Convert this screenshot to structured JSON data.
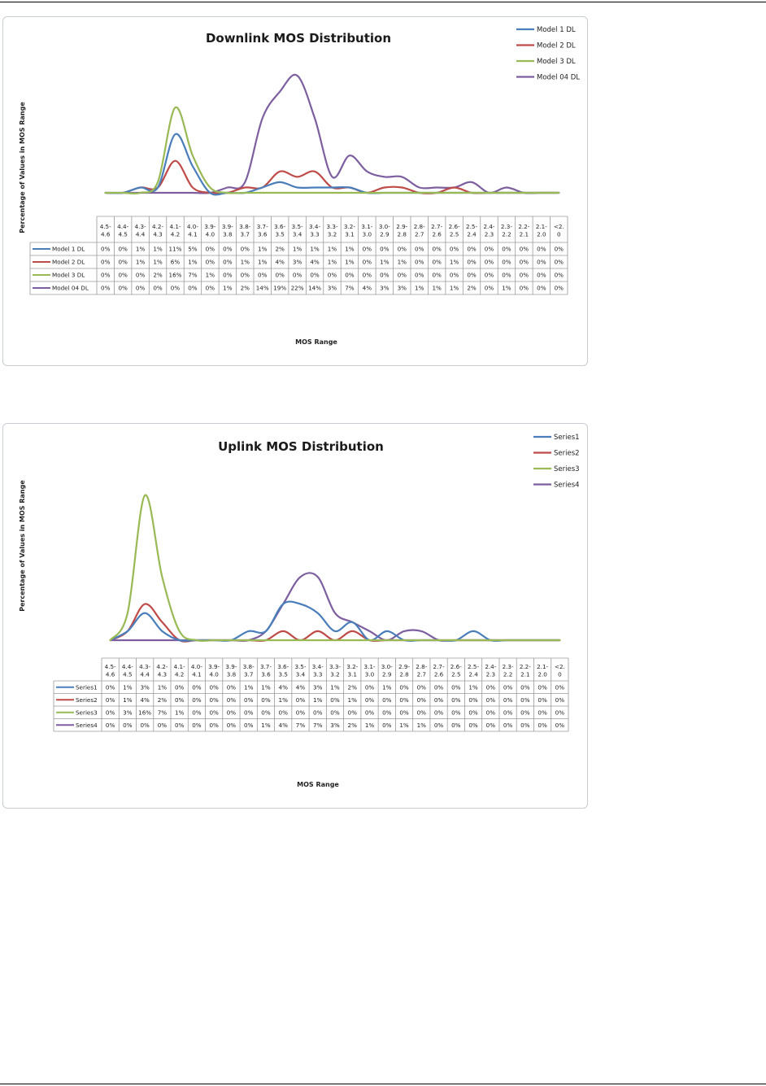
{
  "chart_data": [
    {
      "type": "line",
      "title": "Downlink MOS Distribution",
      "xlabel": "MOS Range",
      "ylabel": "Percentage of Values in MOS Range",
      "legend_position": "top-right",
      "grid": false,
      "smooth": true,
      "categories": [
        "4.5-\n4.6",
        "4.4-\n4.5",
        "4.3-\n4.4",
        "4.2-\n4.3",
        "4.1-\n4.2",
        "4.0-\n4.1",
        "3.9-\n4.0",
        "3.9-\n3.8",
        "3.8-\n3.7",
        "3.7-\n3.6",
        "3.6-\n3.5",
        "3.5-\n3.4",
        "3.4-\n3.3",
        "3.3-\n3.2",
        "3.2-\n3.1",
        "3.1-\n3.0",
        "3.0-\n2.9",
        "2.9-\n2.8",
        "2.8-\n2.7",
        "2.7-\n2.6",
        "2.6-\n2.5",
        "2.5-\n2.4",
        "2.4-\n2.3",
        "2.3-\n2.2",
        "2.2-\n2.1",
        "2.1-\n2.0",
        "<2.\n0"
      ],
      "series": [
        {
          "name": "Model 1 DL",
          "color": "#4a7ebb",
          "values": [
            0,
            0,
            1,
            1,
            11,
            5,
            0,
            0,
            0,
            1,
            2,
            1,
            1,
            1,
            1,
            0,
            0,
            0,
            0,
            0,
            0,
            0,
            0,
            0,
            0,
            0,
            0
          ],
          "labels": [
            "0%",
            "0%",
            "1%",
            "1%",
            "11%",
            "5%",
            "0%",
            "0%",
            "0%",
            "1%",
            "2%",
            "1%",
            "1%",
            "1%",
            "1%",
            "0%",
            "0%",
            "0%",
            "0%",
            "0%",
            "0%",
            "0%",
            "0%",
            "0%",
            "0%",
            "0%",
            "0%"
          ]
        },
        {
          "name": "Model 2 DL",
          "color": "#be4b48",
          "values": [
            0,
            0,
            1,
            1,
            6,
            1,
            0,
            0,
            1,
            1,
            4,
            3,
            4,
            1,
            1,
            0,
            1,
            1,
            0,
            0,
            1,
            0,
            0,
            0,
            0,
            0,
            0
          ],
          "labels": [
            "0%",
            "0%",
            "1%",
            "1%",
            "6%",
            "1%",
            "0%",
            "0%",
            "1%",
            "1%",
            "4%",
            "3%",
            "4%",
            "1%",
            "1%",
            "0%",
            "1%",
            "1%",
            "0%",
            "0%",
            "1%",
            "0%",
            "0%",
            "0%",
            "0%",
            "0%",
            "0%"
          ]
        },
        {
          "name": "Model 3 DL",
          "color": "#98b954",
          "values": [
            0,
            0,
            0,
            2,
            16,
            7,
            1,
            0,
            0,
            0,
            0,
            0,
            0,
            0,
            0,
            0,
            0,
            0,
            0,
            0,
            0,
            0,
            0,
            0,
            0,
            0,
            0
          ],
          "labels": [
            "0%",
            "0%",
            "0%",
            "2%",
            "16%",
            "7%",
            "1%",
            "0%",
            "0%",
            "0%",
            "0%",
            "0%",
            "0%",
            "0%",
            "0%",
            "0%",
            "0%",
            "0%",
            "0%",
            "0%",
            "0%",
            "0%",
            "0%",
            "0%",
            "0%",
            "0%",
            "0%"
          ]
        },
        {
          "name": "Model 04 DL",
          "color": "#7d5fa0",
          "values": [
            0,
            0,
            0,
            0,
            0,
            0,
            0,
            1,
            2,
            14,
            19,
            22,
            14,
            3,
            7,
            4,
            3,
            3,
            1,
            1,
            1,
            2,
            0,
            1,
            0,
            0,
            0
          ],
          "labels": [
            "0%",
            "0%",
            "0%",
            "0%",
            "0%",
            "0%",
            "0%",
            "1%",
            "2%",
            "14%",
            "19%",
            "22%",
            "14%",
            "3%",
            "7%",
            "4%",
            "3%",
            "3%",
            "1%",
            "1%",
            "1%",
            "2%",
            "0%",
            "1%",
            "0%",
            "0%",
            "0%"
          ]
        }
      ]
    },
    {
      "type": "line",
      "title": "Uplink MOS Distribution",
      "xlabel": "MOS Range",
      "ylabel": "Percentage of Values in MOS Range",
      "legend_position": "top-right",
      "grid": false,
      "smooth": true,
      "categories": [
        "4.5-\n4.6",
        "4.4-\n4.5",
        "4.3-\n4.4",
        "4.2-\n4.3",
        "4.1-\n4.2",
        "4.0-\n4.1",
        "3.9-\n4.0",
        "3.9-\n3.8",
        "3.8-\n3.7",
        "3.7-\n3.6",
        "3.6-\n3.5",
        "3.5-\n3.4",
        "3.4-\n3.3",
        "3.3-\n3.2",
        "3.2-\n3.1",
        "3.1-\n3.0",
        "3.0-\n2.9",
        "2.9-\n2.8",
        "2.8-\n2.7",
        "2.7-\n2.6",
        "2.6-\n2.5",
        "2.5-\n2.4",
        "2.4-\n2.3",
        "2.3-\n2.2",
        "2.2-\n2.1",
        "2.1-\n2.0",
        "<2.\n0"
      ],
      "series": [
        {
          "name": "Series1",
          "color": "#4a7ebb",
          "values": [
            0,
            1,
            3,
            1,
            0,
            0,
            0,
            0,
            1,
            1,
            4,
            4,
            3,
            1,
            2,
            0,
            1,
            0,
            0,
            0,
            0,
            1,
            0,
            0,
            0,
            0,
            0
          ],
          "labels": [
            "0%",
            "1%",
            "3%",
            "1%",
            "0%",
            "0%",
            "0%",
            "0%",
            "1%",
            "1%",
            "4%",
            "4%",
            "3%",
            "1%",
            "2%",
            "0%",
            "1%",
            "0%",
            "0%",
            "0%",
            "0%",
            "1%",
            "0%",
            "0%",
            "0%",
            "0%",
            "0%"
          ]
        },
        {
          "name": "Series2",
          "color": "#be4b48",
          "values": [
            0,
            1,
            4,
            2,
            0,
            0,
            0,
            0,
            0,
            0,
            1,
            0,
            1,
            0,
            1,
            0,
            0,
            0,
            0,
            0,
            0,
            0,
            0,
            0,
            0,
            0,
            0
          ],
          "labels": [
            "0%",
            "1%",
            "4%",
            "2%",
            "0%",
            "0%",
            "0%",
            "0%",
            "0%",
            "0%",
            "1%",
            "0%",
            "1%",
            "0%",
            "1%",
            "0%",
            "0%",
            "0%",
            "0%",
            "0%",
            "0%",
            "0%",
            "0%",
            "0%",
            "0%",
            "0%",
            "0%"
          ]
        },
        {
          "name": "Series3",
          "color": "#98b954",
          "values": [
            0,
            3,
            16,
            7,
            1,
            0,
            0,
            0,
            0,
            0,
            0,
            0,
            0,
            0,
            0,
            0,
            0,
            0,
            0,
            0,
            0,
            0,
            0,
            0,
            0,
            0,
            0
          ],
          "labels": [
            "0%",
            "3%",
            "16%",
            "7%",
            "1%",
            "0%",
            "0%",
            "0%",
            "0%",
            "0%",
            "0%",
            "0%",
            "0%",
            "0%",
            "0%",
            "0%",
            "0%",
            "0%",
            "0%",
            "0%",
            "0%",
            "0%",
            "0%",
            "0%",
            "0%",
            "0%",
            "0%"
          ]
        },
        {
          "name": "Series4",
          "color": "#7d5fa0",
          "values": [
            0,
            0,
            0,
            0,
            0,
            0,
            0,
            0,
            0,
            1,
            4,
            7,
            7,
            3,
            2,
            1,
            0,
            1,
            1,
            0,
            0,
            0,
            0,
            0,
            0,
            0,
            0
          ],
          "labels": [
            "0%",
            "0%",
            "0%",
            "0%",
            "0%",
            "0%",
            "0%",
            "0%",
            "0%",
            "1%",
            "4%",
            "7%",
            "7%",
            "3%",
            "2%",
            "1%",
            "0%",
            "1%",
            "1%",
            "0%",
            "0%",
            "0%",
            "0%",
            "0%",
            "0%",
            "0%",
            "0%"
          ]
        }
      ]
    }
  ]
}
